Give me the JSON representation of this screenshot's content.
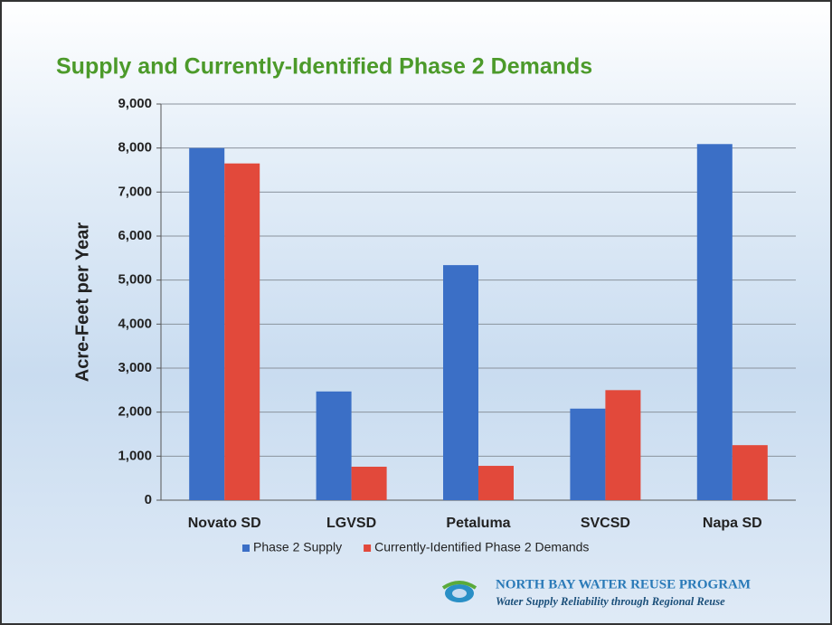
{
  "chart_data": {
    "type": "bar",
    "title": "Supply and Currently-Identified Phase 2 Demands",
    "y_label": "Acre-Feet per Year",
    "categories": [
      "Novato SD",
      "LGVSD",
      "Petaluma",
      "SVCSD",
      "Napa SD"
    ],
    "series": [
      {
        "name": "Phase 2 Supply",
        "color": "#3b6fc6",
        "values": [
          8000,
          2470,
          5340,
          2080,
          8090
        ]
      },
      {
        "name": "Currently-Identified Phase 2 Demands",
        "color": "#e2493b",
        "values": [
          7650,
          760,
          780,
          2500,
          1250
        ]
      }
    ],
    "ylim": [
      0,
      9000
    ],
    "yticks": [
      0,
      {
        "value": 1000,
        "label": "1,000"
      },
      {
        "value": 2000,
        "label": "2,000"
      },
      {
        "value": 3000,
        "label": "3,000"
      },
      {
        "value": 4000,
        "label": "4,000"
      },
      {
        "value": 5000,
        "label": "5,000"
      },
      {
        "value": 6000,
        "label": "6,000"
      },
      {
        "value": 7000,
        "label": "7,000"
      },
      {
        "value": 8000,
        "label": "8,000"
      },
      {
        "value": 9000,
        "label": "9,000"
      }
    ],
    "grid": true,
    "legend": "bottom"
  },
  "footer": {
    "program": "NORTH BAY WATER REUSE PROGRAM",
    "tagline": "Water Supply Reliability through Regional Reuse"
  }
}
